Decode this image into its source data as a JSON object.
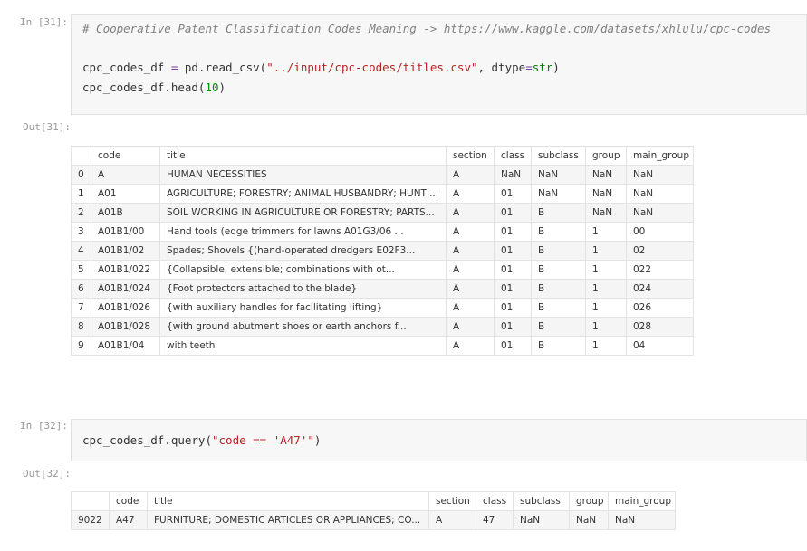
{
  "cells": [
    {
      "prompt_in": "In [31]:",
      "code": {
        "lines": [
          [
            {
              "text": "# Cooperative Patent Classification Codes Meaning -> https://www.kaggle.com/datasets/xhlulu/cpc-codes",
              "color": "#808080",
              "italic": true
            }
          ],
          [],
          [
            {
              "text": "cpc_codes_df",
              "color": "#333333"
            },
            {
              "text": " = ",
              "color": "#7a3e9d"
            },
            {
              "text": "pd.read_csv(",
              "color": "#333333"
            },
            {
              "text": "\"../input/cpc-codes/titles.csv\"",
              "color": "#ba2121"
            },
            {
              "text": ", dtype",
              "color": "#333333"
            },
            {
              "text": "=",
              "color": "#7a3e9d"
            },
            {
              "text": "str",
              "color": "#008000"
            },
            {
              "text": ")",
              "color": "#333333"
            }
          ],
          [
            {
              "text": "cpc_codes_df.head(",
              "color": "#333333"
            },
            {
              "text": "10",
              "color": "#008800"
            },
            {
              "text": ")",
              "color": "#333333"
            }
          ]
        ]
      },
      "prompt_out": "Out[31]:",
      "table": {
        "columns": [
          "code",
          "title",
          "section",
          "class",
          "subclass",
          "group",
          "main_group"
        ],
        "rows": [
          [
            "0",
            "A",
            "HUMAN NECESSITIES",
            "A",
            "NaN",
            "NaN",
            "NaN",
            "NaN"
          ],
          [
            "1",
            "A01",
            "AGRICULTURE; FORESTRY; ANIMAL HUSBANDRY; HUNTI...",
            "A",
            "01",
            "NaN",
            "NaN",
            "NaN"
          ],
          [
            "2",
            "A01B",
            "SOIL WORKING IN AGRICULTURE OR FORESTRY; PARTS...",
            "A",
            "01",
            "B",
            "NaN",
            "NaN"
          ],
          [
            "3",
            "A01B1/00",
            "Hand tools (edge trimmers for lawns A01G3/06 ...",
            "A",
            "01",
            "B",
            "1",
            "00"
          ],
          [
            "4",
            "A01B1/02",
            "Spades; Shovels {(hand-operated dredgers E02F3...",
            "A",
            "01",
            "B",
            "1",
            "02"
          ],
          [
            "5",
            "A01B1/022",
            "{Collapsible; extensible; combinations with ot...",
            "A",
            "01",
            "B",
            "1",
            "022"
          ],
          [
            "6",
            "A01B1/024",
            "{Foot protectors attached to the blade}",
            "A",
            "01",
            "B",
            "1",
            "024"
          ],
          [
            "7",
            "A01B1/026",
            "{with auxiliary handles for facilitating lifting}",
            "A",
            "01",
            "B",
            "1",
            "026"
          ],
          [
            "8",
            "A01B1/028",
            "{with ground abutment shoes or earth anchors f...",
            "A",
            "01",
            "B",
            "1",
            "028"
          ],
          [
            "9",
            "A01B1/04",
            "with teeth",
            "A",
            "01",
            "B",
            "1",
            "04"
          ]
        ]
      }
    },
    {
      "prompt_in": "In [32]:",
      "code": {
        "lines": [
          [
            {
              "text": "cpc_codes_df.query(",
              "color": "#333333"
            },
            {
              "text": "\"code == 'A47'\"",
              "color": "#ba2121"
            },
            {
              "text": ")",
              "color": "#333333"
            }
          ]
        ]
      },
      "prompt_out": "Out[32]:",
      "table": {
        "columns": [
          "code",
          "title",
          "section",
          "class",
          "subclass",
          "group",
          "main_group"
        ],
        "rows": [
          [
            "9022",
            "A47",
            "FURNITURE; DOMESTIC ARTICLES OR APPLIANCES; CO...",
            "A",
            "47",
            "NaN",
            "NaN",
            "NaN"
          ]
        ]
      }
    }
  ]
}
